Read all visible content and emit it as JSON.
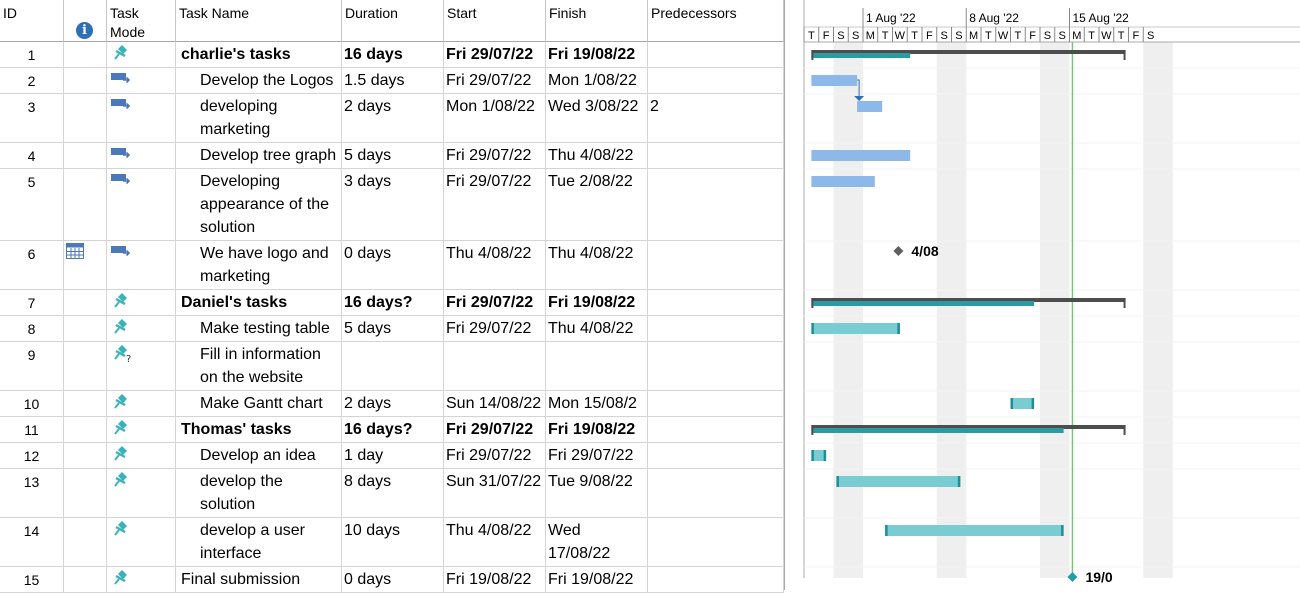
{
  "columns": {
    "id": "ID",
    "task_mode": "Task\nMode",
    "task_name": "Task Name",
    "duration": "Duration",
    "start": "Start",
    "finish": "Finish",
    "predecessors": "Predecessors"
  },
  "timescale": {
    "weeks": [
      "1 Aug '22",
      "8 Aug '22",
      "15 Aug '22"
    ],
    "days": [
      "T",
      "F",
      "S",
      "S",
      "M",
      "T",
      "W",
      "T",
      "F",
      "S",
      "S",
      "M",
      "T",
      "W",
      "T",
      "F",
      "S",
      "S",
      "M",
      "T",
      "W",
      "T",
      "F",
      "S"
    ]
  },
  "tasks": [
    {
      "id": "1",
      "mode": "manual-pin",
      "name": "charlie's tasks",
      "duration": "16 days",
      "start": "Fri 29/07/22",
      "finish": "Fri 19/08/22",
      "pred": "",
      "summary": true,
      "indent": 0,
      "lines": 1
    },
    {
      "id": "2",
      "mode": "auto",
      "name": "Develop the Logos",
      "duration": "1.5 days",
      "start": "Fri 29/07/22",
      "finish": "Mon 1/08/22",
      "pred": "",
      "summary": false,
      "indent": 1,
      "lines": 1
    },
    {
      "id": "3",
      "mode": "auto",
      "name": "developing marketing",
      "duration": "2 days",
      "start": "Mon 1/08/22",
      "finish": "Wed 3/08/22",
      "pred": "2",
      "summary": false,
      "indent": 1,
      "lines": 2
    },
    {
      "id": "4",
      "mode": "auto",
      "name": "Develop tree graph",
      "duration": "5 days",
      "start": "Fri 29/07/22",
      "finish": "Thu 4/08/22",
      "pred": "",
      "summary": false,
      "indent": 1,
      "lines": 1
    },
    {
      "id": "5",
      "mode": "auto",
      "name": "Developing appearance of the solution",
      "duration": "3 days",
      "start": "Fri 29/07/22",
      "finish": "Tue 2/08/22",
      "pred": "",
      "summary": false,
      "indent": 1,
      "lines": 3
    },
    {
      "id": "6",
      "mode": "auto",
      "name": "We have logo and marketing",
      "duration": "0 days",
      "start": "Thu 4/08/22",
      "finish": "Thu 4/08/22",
      "pred": "",
      "summary": false,
      "indent": 1,
      "lines": 2,
      "calendar": true
    },
    {
      "id": "7",
      "mode": "manual-pin",
      "name": "Daniel's tasks",
      "duration": "16 days?",
      "start": "Fri 29/07/22",
      "finish": "Fri 19/08/22",
      "pred": "",
      "summary": true,
      "indent": 0,
      "lines": 1
    },
    {
      "id": "8",
      "mode": "manual-pin",
      "name": "Make testing table",
      "duration": "5 days",
      "start": "Fri 29/07/22",
      "finish": "Thu 4/08/22",
      "pred": "",
      "summary": false,
      "indent": 1,
      "lines": 1
    },
    {
      "id": "9",
      "mode": "manual-question",
      "name": "Fill in information on the website",
      "duration": "",
      "start": "",
      "finish": "",
      "pred": "",
      "summary": false,
      "indent": 1,
      "lines": 2
    },
    {
      "id": "10",
      "mode": "manual-pin",
      "name": "Make Gantt chart",
      "duration": "2 days",
      "start": "Sun 14/08/22",
      "finish": "Mon 15/08/2",
      "pred": "",
      "summary": false,
      "indent": 1,
      "lines": 1
    },
    {
      "id": "11",
      "mode": "manual-pin",
      "name": "Thomas' tasks",
      "duration": "16 days?",
      "start": "Fri 29/07/22",
      "finish": "Fri 19/08/22",
      "pred": "",
      "summary": true,
      "indent": 0,
      "lines": 1
    },
    {
      "id": "12",
      "mode": "manual-pin",
      "name": "Develop an idea",
      "duration": "1 day",
      "start": "Fri 29/07/22",
      "finish": "Fri 29/07/22",
      "pred": "",
      "summary": false,
      "indent": 1,
      "lines": 1
    },
    {
      "id": "13",
      "mode": "manual-pin",
      "name": "develop the solution",
      "duration": "8 days",
      "start": "Sun 31/07/22",
      "finish": "Tue 9/08/22",
      "pred": "",
      "summary": false,
      "indent": 1,
      "lines": 2
    },
    {
      "id": "14",
      "mode": "manual-pin",
      "name": "develop a user interface",
      "duration": "10 days",
      "start": "Thu 4/08/22",
      "finish": "Wed 17/08/22",
      "pred": "",
      "summary": false,
      "indent": 1,
      "lines": 2
    },
    {
      "id": "15",
      "mode": "manual-pin",
      "name": "Final submission",
      "duration": "0 days",
      "start": "Fri 19/08/22",
      "finish": "Fri 19/08/22",
      "pred": "",
      "summary": false,
      "indent": 0,
      "lines": 1
    }
  ],
  "bars": [
    {
      "row": 0,
      "kind": "summary",
      "start_day": 0.5,
      "end_day": 21.8,
      "progress_end": 7.2
    },
    {
      "row": 1,
      "kind": "auto",
      "start_day": 0.5,
      "end_day": 3.6
    },
    {
      "row": 2,
      "kind": "auto",
      "start_day": 3.6,
      "end_day": 5.3
    },
    {
      "row": 3,
      "kind": "auto",
      "start_day": 0.5,
      "end_day": 7.2
    },
    {
      "row": 4,
      "kind": "auto",
      "start_day": 0.5,
      "end_day": 4.8
    },
    {
      "row": 5,
      "kind": "milestone",
      "start_day": 6.4,
      "label": "4/08"
    },
    {
      "row": 6,
      "kind": "summary",
      "start_day": 0.5,
      "end_day": 21.8,
      "progress_end": 15.6
    },
    {
      "row": 7,
      "kind": "manual",
      "start_day": 0.5,
      "end_day": 6.5
    },
    {
      "row": 9,
      "kind": "manual",
      "start_day": 14.0,
      "end_day": 15.6
    },
    {
      "row": 10,
      "kind": "summary",
      "start_day": 0.5,
      "end_day": 21.8,
      "progress_end": 17.6
    },
    {
      "row": 11,
      "kind": "manual",
      "start_day": 0.5,
      "end_day": 1.5
    },
    {
      "row": 12,
      "kind": "manual",
      "start_day": 2.2,
      "end_day": 10.6
    },
    {
      "row": 13,
      "kind": "manual",
      "start_day": 5.5,
      "end_day": 17.6
    },
    {
      "row": 14,
      "kind": "manual-milestone",
      "start_day": 18.2,
      "label": "19/0"
    }
  ],
  "status_date_day": 18.2,
  "colors": {
    "auto_bar": "#8db8ea",
    "manual_bar": "#7accd3",
    "manual_bar_edge": "#1e8f9a",
    "summary_bar": "#4d4d4d",
    "summary_progress": "#2a9aa3",
    "weekend": "#efefef",
    "status_line": "#7dbf7d",
    "link": "#2e6fb8",
    "milestone": "#606060",
    "pin": "#3ab3b8"
  }
}
